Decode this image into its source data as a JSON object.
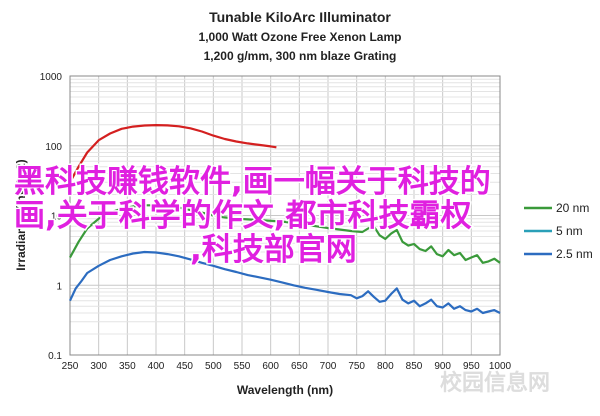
{
  "chart_data": {
    "type": "line",
    "title": "Tunable KiloArc Illuminator",
    "subtitle_lines": [
      "1,000 Watt Ozone Free Xenon Lamp",
      "1,200 g/mm, 300 nm blaze Grating"
    ],
    "xlabel": "Wavelength (nm)",
    "ylabel": "Irradiance (mW/m2)",
    "xlim": [
      250,
      1000
    ],
    "ylim": [
      0.1,
      1000
    ],
    "y_scale": "log",
    "x_ticks": [
      250,
      300,
      350,
      400,
      450,
      500,
      550,
      600,
      650,
      700,
      750,
      800,
      850,
      900,
      950,
      1000
    ],
    "y_ticks": [
      {
        "value": 0.1,
        "label": "0.1"
      },
      {
        "value": 1,
        "label": "1"
      },
      {
        "value": 10,
        "label": "10"
      },
      {
        "value": 100,
        "label": "100"
      },
      {
        "value": 1000,
        "label": "1000"
      }
    ],
    "grid": true,
    "legend_position": "right",
    "series": [
      {
        "name": "",
        "color": "#d42020",
        "points": [
          [
            250,
            30
          ],
          [
            265,
            50
          ],
          [
            280,
            80
          ],
          [
            300,
            120
          ],
          [
            320,
            150
          ],
          [
            340,
            175
          ],
          [
            360,
            188
          ],
          [
            380,
            195
          ],
          [
            400,
            198
          ],
          [
            420,
            196
          ],
          [
            440,
            190
          ],
          [
            460,
            178
          ],
          [
            480,
            160
          ],
          [
            500,
            140
          ],
          [
            520,
            125
          ],
          [
            540,
            115
          ],
          [
            560,
            108
          ],
          [
            580,
            103
          ],
          [
            600,
            98
          ],
          [
            610,
            95
          ]
        ]
      },
      {
        "name": "20 nm",
        "color": "#3a9a3a",
        "points": [
          [
            250,
            2.5
          ],
          [
            265,
            4.2
          ],
          [
            280,
            6.5
          ],
          [
            300,
            9
          ],
          [
            320,
            11
          ],
          [
            340,
            12.5
          ],
          [
            360,
            13.5
          ],
          [
            380,
            14
          ],
          [
            400,
            14
          ],
          [
            420,
            13.6
          ],
          [
            440,
            13
          ],
          [
            460,
            12
          ],
          [
            480,
            11
          ],
          [
            500,
            10
          ],
          [
            520,
            9.4
          ],
          [
            540,
            9
          ],
          [
            560,
            8.8
          ],
          [
            580,
            8.6
          ],
          [
            600,
            8.4
          ],
          [
            620,
            8.2
          ],
          [
            640,
            7.8
          ],
          [
            660,
            7.4
          ],
          [
            680,
            7
          ],
          [
            700,
            6.6
          ],
          [
            720,
            6.3
          ],
          [
            740,
            6
          ],
          [
            760,
            5.8
          ],
          [
            770,
            6.5
          ],
          [
            780,
            7
          ],
          [
            790,
            5.2
          ],
          [
            800,
            4.6
          ],
          [
            810,
            5.5
          ],
          [
            820,
            6.2
          ],
          [
            830,
            4.2
          ],
          [
            840,
            3.7
          ],
          [
            850,
            3.9
          ],
          [
            860,
            3.3
          ],
          [
            870,
            3.1
          ],
          [
            880,
            3.6
          ],
          [
            890,
            2.8
          ],
          [
            900,
            2.6
          ],
          [
            910,
            3.2
          ],
          [
            920,
            2.7
          ],
          [
            930,
            2.9
          ],
          [
            940,
            2.3
          ],
          [
            950,
            2.5
          ],
          [
            960,
            2.7
          ],
          [
            970,
            2.1
          ],
          [
            980,
            2.2
          ],
          [
            990,
            2.4
          ],
          [
            1000,
            2.1
          ]
        ]
      },
      {
        "name": "5 nm",
        "color": "#2aa0b8",
        "points": []
      },
      {
        "name": "2.5 nm",
        "color": "#2c6cc0",
        "points": [
          [
            250,
            0.6
          ],
          [
            260,
            0.9
          ],
          [
            270,
            1.15
          ],
          [
            280,
            1.5
          ],
          [
            300,
            1.9
          ],
          [
            320,
            2.3
          ],
          [
            340,
            2.6
          ],
          [
            360,
            2.85
          ],
          [
            380,
            3
          ],
          [
            400,
            2.95
          ],
          [
            420,
            2.8
          ],
          [
            440,
            2.6
          ],
          [
            460,
            2.35
          ],
          [
            480,
            2.1
          ],
          [
            500,
            1.9
          ],
          [
            520,
            1.7
          ],
          [
            540,
            1.55
          ],
          [
            560,
            1.4
          ],
          [
            580,
            1.3
          ],
          [
            600,
            1.2
          ],
          [
            620,
            1.1
          ],
          [
            640,
            1.0
          ],
          [
            660,
            0.92
          ],
          [
            680,
            0.86
          ],
          [
            700,
            0.8
          ],
          [
            720,
            0.75
          ],
          [
            740,
            0.72
          ],
          [
            750,
            0.65
          ],
          [
            760,
            0.7
          ],
          [
            770,
            0.82
          ],
          [
            780,
            0.68
          ],
          [
            790,
            0.58
          ],
          [
            800,
            0.6
          ],
          [
            810,
            0.75
          ],
          [
            820,
            0.9
          ],
          [
            830,
            0.62
          ],
          [
            840,
            0.55
          ],
          [
            850,
            0.6
          ],
          [
            860,
            0.5
          ],
          [
            870,
            0.55
          ],
          [
            880,
            0.62
          ],
          [
            890,
            0.5
          ],
          [
            900,
            0.48
          ],
          [
            910,
            0.55
          ],
          [
            920,
            0.46
          ],
          [
            930,
            0.5
          ],
          [
            940,
            0.44
          ],
          [
            950,
            0.42
          ],
          [
            960,
            0.46
          ],
          [
            970,
            0.4
          ],
          [
            980,
            0.42
          ],
          [
            990,
            0.44
          ],
          [
            1000,
            0.4
          ]
        ]
      }
    ]
  },
  "overlay_text": [
    "黑科技赚钱软件,画一幅关于科技的",
    "画,关于科学的作文,都市科技霸权",
    ",科技部官网"
  ],
  "watermark": "校园信息网"
}
